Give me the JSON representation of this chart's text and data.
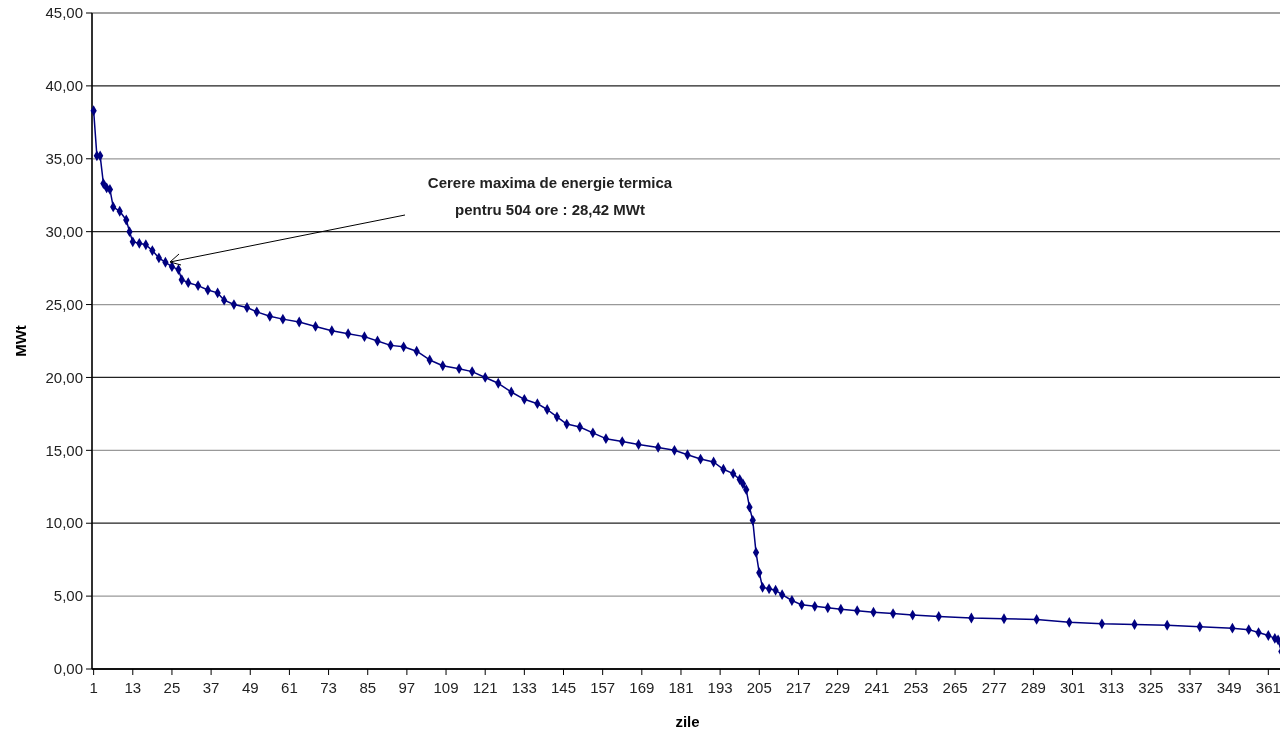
{
  "chart_data": {
    "type": "line",
    "xlabel": "zile",
    "ylabel": "MWt",
    "x": [
      1,
      2,
      3,
      4,
      5,
      6,
      7,
      9,
      11,
      12,
      13,
      15,
      17,
      19,
      21,
      23,
      25,
      27,
      28,
      30,
      33,
      36,
      39,
      41,
      44,
      48,
      51,
      55,
      59,
      64,
      69,
      74,
      79,
      84,
      88,
      92,
      96,
      100,
      104,
      108,
      113,
      117,
      121,
      125,
      129,
      133,
      137,
      140,
      143,
      146,
      150,
      154,
      158,
      163,
      168,
      174,
      179,
      183,
      187,
      191,
      194,
      197,
      199,
      200,
      201,
      202,
      203,
      204,
      205,
      206,
      208,
      210,
      212,
      215,
      218,
      222,
      226,
      230,
      235,
      240,
      246,
      252,
      260,
      270,
      280,
      290,
      300,
      310,
      320,
      330,
      340,
      350,
      355,
      358,
      361,
      363,
      364,
      365
    ],
    "series": [
      {
        "color": "#000080",
        "values": [
          38.3,
          35.2,
          35.2,
          33.3,
          33.0,
          32.9,
          31.7,
          31.4,
          30.8,
          30.0,
          29.3,
          29.2,
          29.1,
          28.7,
          28.2,
          27.9,
          27.6,
          27.4,
          26.7,
          26.5,
          26.3,
          26.0,
          25.8,
          25.3,
          25.0,
          24.8,
          24.5,
          24.2,
          24.0,
          23.8,
          23.5,
          23.2,
          23.0,
          22.8,
          22.5,
          22.2,
          22.1,
          21.8,
          21.2,
          20.8,
          20.6,
          20.4,
          20.0,
          19.6,
          19.0,
          18.5,
          18.2,
          17.8,
          17.3,
          16.8,
          16.6,
          16.2,
          15.8,
          15.6,
          15.4,
          15.2,
          15.0,
          14.7,
          14.4,
          14.2,
          13.7,
          13.4,
          13.0,
          12.7,
          12.3,
          11.1,
          10.2,
          8.0,
          6.6,
          5.6,
          5.5,
          5.4,
          5.1,
          4.7,
          4.4,
          4.3,
          4.2,
          4.1,
          4.0,
          3.9,
          3.8,
          3.7,
          3.6,
          3.5,
          3.45,
          3.4,
          3.2,
          3.1,
          3.05,
          3.0,
          2.9,
          2.8,
          2.7,
          2.5,
          2.3,
          2.1,
          2.0,
          1.2
        ]
      }
    ],
    "xlim": [
      0.5,
      365.5
    ],
    "xticks": [
      1,
      13,
      25,
      37,
      49,
      61,
      73,
      85,
      97,
      109,
      121,
      133,
      145,
      157,
      169,
      181,
      193,
      205,
      217,
      229,
      241,
      253,
      265,
      277,
      289,
      301,
      313,
      325,
      337,
      349,
      361
    ],
    "ylim": [
      0,
      45
    ],
    "yticks": [
      {
        "value": 0,
        "label": "0,00"
      },
      {
        "value": 5,
        "label": "5,00"
      },
      {
        "value": 10,
        "label": "10,00"
      },
      {
        "value": 15,
        "label": "15,00"
      },
      {
        "value": 20,
        "label": "20,00"
      },
      {
        "value": 25,
        "label": "25,00"
      },
      {
        "value": 30,
        "label": "30,00"
      },
      {
        "value": 35,
        "label": "35,00"
      },
      {
        "value": 40,
        "label": "40,00"
      },
      {
        "value": 45,
        "label": "45,00"
      }
    ],
    "grid": "y",
    "marker": "diamond",
    "line_style": "solid",
    "annotations": [
      "Cerere maxima de energie termica\npentru 504 ore : 28,42 MWt"
    ]
  }
}
